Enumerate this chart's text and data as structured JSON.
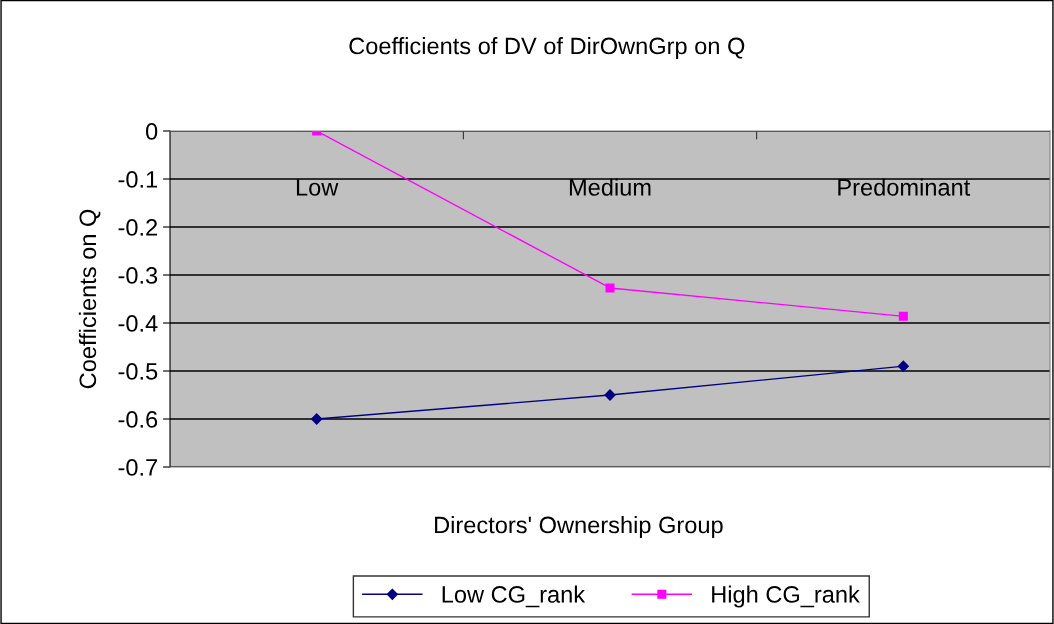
{
  "chart_data": {
    "type": "line",
    "title": "Coefficients of DV of DirOwnGrp on Q",
    "xlabel": "Directors' Ownership Group",
    "ylabel": "Coefficients on Q",
    "categories": [
      "Low",
      "Medium",
      "Predominant"
    ],
    "series": [
      {
        "name": "Low CG_rank",
        "color": "#000080",
        "marker": "diamond",
        "values": [
          -0.6,
          -0.55,
          -0.49
        ]
      },
      {
        "name": "High CG_rank",
        "color": "#ff00ff",
        "marker": "square",
        "values": [
          0,
          -0.327,
          -0.386
        ]
      }
    ],
    "ylim": [
      -0.7,
      0
    ],
    "yticks": [
      -0.7,
      -0.6,
      -0.5,
      -0.4,
      -0.3,
      -0.2,
      -0.1,
      0
    ],
    "grid": "y",
    "legend": "bottom",
    "line_style": "solid"
  }
}
